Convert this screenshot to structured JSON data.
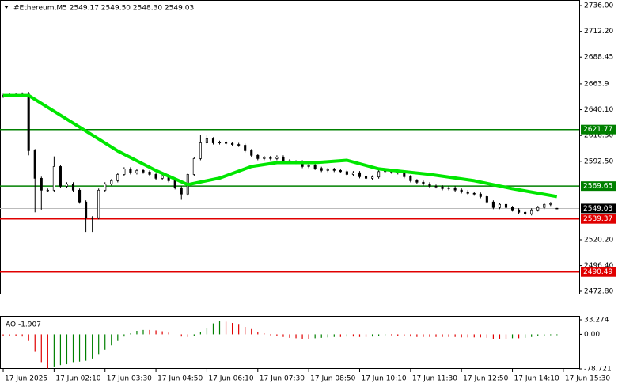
{
  "chart_data": [
    {
      "type": "candlestick",
      "title": "#Ethereum,M5  2549.17 2549.50 2548.30 2549.03",
      "xlim": [
        -0.5,
        90.5
      ],
      "ylim": [
        2470.6,
        2740.4
      ],
      "xticks": [
        {
          "value": 0,
          "label": "17 Jun 2025"
        },
        {
          "value": 8,
          "label": "17 Jun 02:10"
        },
        {
          "value": 16,
          "label": "17 Jun 03:30"
        },
        {
          "value": 24,
          "label": "17 Jun 04:50"
        },
        {
          "value": 32,
          "label": "17 Jun 06:10"
        },
        {
          "value": 40,
          "label": "17 Jun 07:30"
        },
        {
          "value": 48,
          "label": "17 Jun 08:50"
        },
        {
          "value": 56,
          "label": "17 Jun 10:10"
        },
        {
          "value": 64,
          "label": "17 Jun 11:30"
        },
        {
          "value": 72,
          "label": "17 Jun 12:50"
        },
        {
          "value": 80,
          "label": "17 Jun 14:10"
        },
        {
          "value": 88,
          "label": "17 Jun 15:30"
        }
      ],
      "yticks": [
        {
          "value": 2736,
          "label": "2736.00"
        },
        {
          "value": 2712.2,
          "label": "2712.20"
        },
        {
          "value": 2688.45,
          "label": "2688.45"
        },
        2663.9,
        {
          "value": 2640.1,
          "label": "2640.10"
        },
        {
          "value": 2616.3,
          "label": "2616.30"
        },
        {
          "value": 2592.5,
          "label": "2592.50"
        },
        {
          "value": 2520.2,
          "label": "2520.20"
        },
        {
          "value": 2496.4,
          "label": "2496.40"
        },
        {
          "value": 2472.8,
          "label": "2472.80"
        }
      ],
      "open": [
        2652.5,
        2653.2,
        2654.0,
        2653.5,
        2654.5,
        2602.3,
        2576.8,
        2565.9,
        2565.9,
        2587.7,
        2569.5,
        2571.7,
        2565.9,
        2555.0,
        2540.4,
        2540.4,
        2565.9,
        2571.7,
        2574.6,
        2580.4,
        2585.5,
        2581.9,
        2584.1,
        2582.6,
        2580.4,
        2576.8,
        2579.0,
        2574.6,
        2568.1,
        2562.3,
        2580.4,
        2595.0,
        2609.5,
        2613.2,
        2609.5,
        2610.0,
        2609.0,
        2608.0,
        2607.3,
        2602.3,
        2598.0,
        2595.0,
        2596.0,
        2595.0,
        2596.5,
        2593.0,
        2591.3,
        2592.0,
        2587.7,
        2588.5,
        2586.0,
        2584.1,
        2585.0,
        2584.1,
        2583.0,
        2580.4,
        2582.0,
        2578.3,
        2576.8,
        2578.0,
        2583.0,
        2584.1,
        2582.6,
        2581.9,
        2578.3,
        2574.6,
        2573.2,
        2571.7,
        2569.5,
        2569.0,
        2567.3,
        2568.1,
        2566.0,
        2564.4,
        2563.0,
        2562.3,
        2560.0,
        2555.0,
        2549.9,
        2552.8,
        2549.9,
        2547.7,
        2545.5,
        2544.1,
        2547.7,
        2549.9,
        2552.8,
        2549.17
      ],
      "high": [
        2654.7,
        2655.5,
        2655.5,
        2656.0,
        2656.5,
        2603.8,
        2578.3,
        2567.4,
        2597.0,
        2589.2,
        2573.2,
        2573.2,
        2567.4,
        2556.5,
        2541.9,
        2567.4,
        2573.2,
        2576.1,
        2581.9,
        2587.0,
        2587.0,
        2585.6,
        2585.6,
        2584.1,
        2581.9,
        2580.5,
        2580.5,
        2576.1,
        2569.6,
        2581.9,
        2596.5,
        2617.0,
        2617.0,
        2614.7,
        2611.5,
        2611.5,
        2610.5,
        2609.5,
        2608.8,
        2603.8,
        2599.5,
        2597.5,
        2597.5,
        2598.0,
        2598.0,
        2594.5,
        2593.5,
        2593.5,
        2590.0,
        2590.0,
        2587.5,
        2586.5,
        2586.5,
        2585.6,
        2584.5,
        2583.5,
        2583.5,
        2579.8,
        2579.5,
        2584.5,
        2585.6,
        2585.6,
        2584.1,
        2583.4,
        2579.8,
        2576.1,
        2574.7,
        2573.2,
        2571.0,
        2570.5,
        2569.6,
        2569.6,
        2567.5,
        2565.9,
        2564.5,
        2563.8,
        2561.5,
        2556.5,
        2554.3,
        2554.3,
        2551.4,
        2549.2,
        2547.0,
        2549.2,
        2551.4,
        2554.3,
        2555.0,
        2549.5
      ],
      "low": [
        2651.0,
        2651.7,
        2652.0,
        2652.0,
        2598.0,
        2545.5,
        2548.0,
        2564.4,
        2564.4,
        2568.0,
        2568.0,
        2564.4,
        2553.5,
        2527.4,
        2527.4,
        2538.9,
        2564.4,
        2570.2,
        2573.1,
        2578.9,
        2580.4,
        2580.4,
        2581.1,
        2578.9,
        2575.3,
        2575.3,
        2573.1,
        2566.6,
        2557.0,
        2560.8,
        2578.9,
        2593.5,
        2608.0,
        2608.0,
        2608.0,
        2607.5,
        2606.5,
        2605.8,
        2600.8,
        2596.5,
        2593.5,
        2593.5,
        2593.5,
        2593.5,
        2591.5,
        2589.8,
        2589.8,
        2586.2,
        2586.2,
        2584.5,
        2582.6,
        2582.6,
        2582.6,
        2581.5,
        2578.9,
        2578.9,
        2576.8,
        2575.3,
        2575.3,
        2576.5,
        2581.5,
        2581.1,
        2580.4,
        2576.8,
        2573.1,
        2571.7,
        2570.2,
        2568.0,
        2567.5,
        2565.8,
        2565.8,
        2564.5,
        2562.9,
        2561.5,
        2560.8,
        2558.5,
        2553.5,
        2548.4,
        2548.4,
        2548.4,
        2546.2,
        2544.0,
        2542.6,
        2542.6,
        2546.2,
        2548.4,
        2551.3,
        2548.3
      ],
      "close": [
        2653.2,
        2654.0,
        2653.5,
        2654.5,
        2602.3,
        2576.8,
        2565.9,
        2565.9,
        2587.7,
        2569.5,
        2571.7,
        2565.9,
        2555.0,
        2540.4,
        2540.4,
        2565.9,
        2571.7,
        2574.6,
        2580.4,
        2585.5,
        2581.9,
        2584.1,
        2582.6,
        2580.4,
        2576.8,
        2579.0,
        2574.6,
        2568.1,
        2562.3,
        2580.4,
        2595.0,
        2609.5,
        2613.2,
        2609.5,
        2610.0,
        2609.0,
        2608.0,
        2607.3,
        2602.3,
        2598.0,
        2595.0,
        2596.0,
        2595.0,
        2596.5,
        2593.0,
        2591.3,
        2592.0,
        2587.7,
        2588.5,
        2586.0,
        2584.1,
        2585.0,
        2584.1,
        2583.0,
        2580.4,
        2582.0,
        2578.3,
        2576.8,
        2578.0,
        2583.0,
        2584.1,
        2582.6,
        2581.9,
        2578.3,
        2574.6,
        2573.2,
        2571.7,
        2569.5,
        2569.0,
        2567.3,
        2568.1,
        2566.0,
        2564.4,
        2563.0,
        2562.3,
        2560.0,
        2555.0,
        2549.9,
        2552.8,
        2549.9,
        2547.7,
        2545.5,
        2544.1,
        2547.7,
        2549.9,
        2552.8,
        2553.5,
        2549.03
      ],
      "ma": {
        "color": "#00e600",
        "x": [
          0,
          4,
          12,
          18,
          24,
          29,
          34,
          39,
          43,
          49,
          54,
          59,
          67,
          74,
          80,
          87
        ],
        "values": [
          2653.2,
          2653.2,
          2624.0,
          2602.0,
          2584.0,
          2571.0,
          2577.0,
          2587.7,
          2591.3,
          2591.3,
          2593.5,
          2585.5,
          2580.4,
          2574.6,
          2567.3,
          2560.0
        ]
      },
      "levels": [
        {
          "value": 2621.77,
          "color": "#008000"
        },
        {
          "value": 2569.65,
          "color": "#008000"
        },
        {
          "value": 2539.37,
          "color": "#e00000"
        },
        {
          "value": 2490.49,
          "color": "#e00000"
        }
      ],
      "last_price": {
        "value": 2549.03,
        "color": "#000000"
      }
    },
    {
      "type": "bar",
      "label": "AO -1.907",
      "up_color": "#008000",
      "down_color": "#e00000",
      "ylim": [
        -78.721,
        33.274
      ],
      "yticks": [
        33.274,
        {
          "value": 0,
          "label": "0.00"
        },
        -78.721
      ],
      "values": [
        -3,
        -4,
        -4,
        -5,
        -15,
        -40,
        -65,
        -78,
        -75,
        -70,
        -68,
        -65,
        -62,
        -60,
        -55,
        -45,
        -35,
        -25,
        -15,
        -5,
        2,
        8,
        10,
        10,
        9,
        7,
        4,
        0,
        -5,
        -6,
        -3,
        5,
        15,
        25,
        30,
        29,
        26,
        22,
        17,
        12,
        6,
        2,
        -2,
        -4,
        -6,
        -8,
        -9,
        -10,
        -10,
        -9,
        -8,
        -7,
        -6,
        -6,
        -5,
        -5,
        -6,
        -6,
        -5,
        -3,
        -2,
        -2,
        -3,
        -4,
        -5,
        -6,
        -6,
        -6,
        -6,
        -6,
        -6,
        -6,
        -7,
        -7,
        -7,
        -7,
        -8,
        -10,
        -10,
        -10,
        -9,
        -9,
        -8,
        -6,
        -4,
        -3,
        -2,
        -1.907
      ]
    }
  ]
}
